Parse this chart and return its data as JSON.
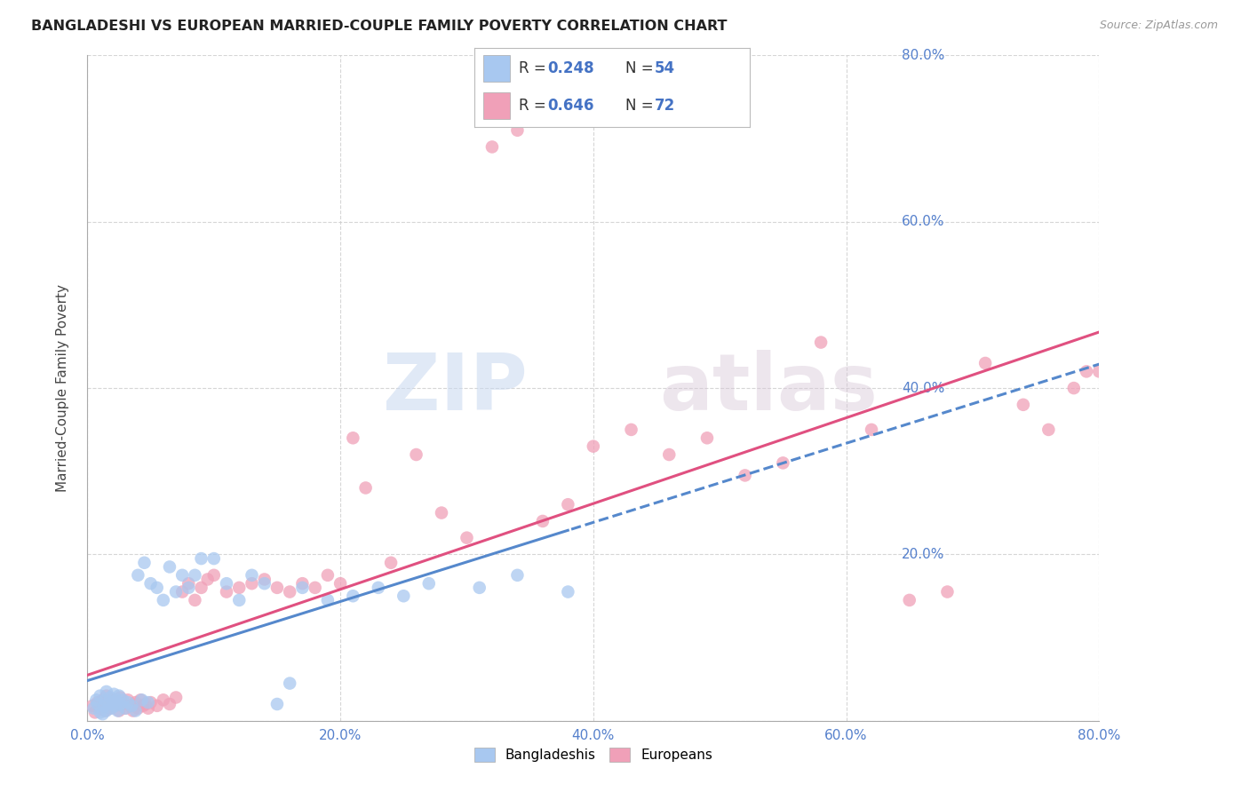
{
  "title": "BANGLADESHI VS EUROPEAN MARRIED-COUPLE FAMILY POVERTY CORRELATION CHART",
  "source": "Source: ZipAtlas.com",
  "ylabel": "Married-Couple Family Poverty",
  "watermark_zip": "ZIP",
  "watermark_atlas": "atlas",
  "legend_labels": [
    "Bangladeshis",
    "Europeans"
  ],
  "bangladeshi_R": "0.248",
  "bangladeshi_N": "54",
  "european_R": "0.646",
  "european_N": "72",
  "blue_scatter": "#a8c8f0",
  "pink_scatter": "#f0a0b8",
  "blue_line": "#5588cc",
  "pink_line": "#e05080",
  "axis_tick_color": "#5580cc",
  "grid_color": "#cccccc",
  "background_color": "#ffffff",
  "xlim": [
    0,
    0.8
  ],
  "ylim": [
    0,
    0.8
  ],
  "yticks": [
    0.0,
    0.2,
    0.4,
    0.6,
    0.8
  ],
  "xticks": [
    0.0,
    0.2,
    0.4,
    0.6,
    0.8
  ],
  "bangladeshi_x": [
    0.005,
    0.007,
    0.008,
    0.01,
    0.01,
    0.012,
    0.013,
    0.014,
    0.015,
    0.015,
    0.017,
    0.018,
    0.019,
    0.02,
    0.021,
    0.022,
    0.023,
    0.024,
    0.025,
    0.026,
    0.028,
    0.03,
    0.032,
    0.035,
    0.038,
    0.04,
    0.043,
    0.045,
    0.048,
    0.05,
    0.055,
    0.06,
    0.065,
    0.07,
    0.075,
    0.08,
    0.085,
    0.09,
    0.1,
    0.11,
    0.12,
    0.13,
    0.14,
    0.15,
    0.16,
    0.17,
    0.19,
    0.21,
    0.23,
    0.25,
    0.27,
    0.31,
    0.34,
    0.38
  ],
  "bangladeshi_y": [
    0.015,
    0.025,
    0.02,
    0.01,
    0.03,
    0.008,
    0.018,
    0.025,
    0.012,
    0.035,
    0.02,
    0.028,
    0.015,
    0.022,
    0.032,
    0.018,
    0.025,
    0.012,
    0.03,
    0.02,
    0.025,
    0.015,
    0.022,
    0.018,
    0.012,
    0.175,
    0.025,
    0.19,
    0.022,
    0.165,
    0.16,
    0.145,
    0.185,
    0.155,
    0.175,
    0.16,
    0.175,
    0.195,
    0.195,
    0.165,
    0.145,
    0.175,
    0.165,
    0.02,
    0.045,
    0.16,
    0.145,
    0.15,
    0.16,
    0.15,
    0.165,
    0.16,
    0.175,
    0.155
  ],
  "european_x": [
    0.004,
    0.006,
    0.008,
    0.01,
    0.012,
    0.014,
    0.015,
    0.016,
    0.018,
    0.02,
    0.022,
    0.024,
    0.025,
    0.026,
    0.028,
    0.03,
    0.032,
    0.034,
    0.036,
    0.038,
    0.04,
    0.042,
    0.044,
    0.046,
    0.048,
    0.05,
    0.055,
    0.06,
    0.065,
    0.07,
    0.075,
    0.08,
    0.085,
    0.09,
    0.095,
    0.1,
    0.11,
    0.12,
    0.13,
    0.14,
    0.15,
    0.16,
    0.17,
    0.18,
    0.19,
    0.2,
    0.21,
    0.22,
    0.24,
    0.26,
    0.28,
    0.3,
    0.32,
    0.34,
    0.36,
    0.38,
    0.4,
    0.43,
    0.46,
    0.49,
    0.52,
    0.55,
    0.58,
    0.62,
    0.65,
    0.68,
    0.71,
    0.74,
    0.76,
    0.78,
    0.79,
    0.8
  ],
  "european_y": [
    0.018,
    0.01,
    0.022,
    0.015,
    0.025,
    0.012,
    0.03,
    0.02,
    0.015,
    0.025,
    0.018,
    0.022,
    0.012,
    0.028,
    0.02,
    0.015,
    0.025,
    0.018,
    0.012,
    0.022,
    0.015,
    0.025,
    0.018,
    0.02,
    0.015,
    0.022,
    0.018,
    0.025,
    0.02,
    0.028,
    0.155,
    0.165,
    0.145,
    0.16,
    0.17,
    0.175,
    0.155,
    0.16,
    0.165,
    0.17,
    0.16,
    0.155,
    0.165,
    0.16,
    0.175,
    0.165,
    0.34,
    0.28,
    0.19,
    0.32,
    0.25,
    0.22,
    0.69,
    0.71,
    0.24,
    0.26,
    0.33,
    0.35,
    0.32,
    0.34,
    0.295,
    0.31,
    0.455,
    0.35,
    0.145,
    0.155,
    0.43,
    0.38,
    0.35,
    0.4,
    0.42,
    0.42
  ]
}
